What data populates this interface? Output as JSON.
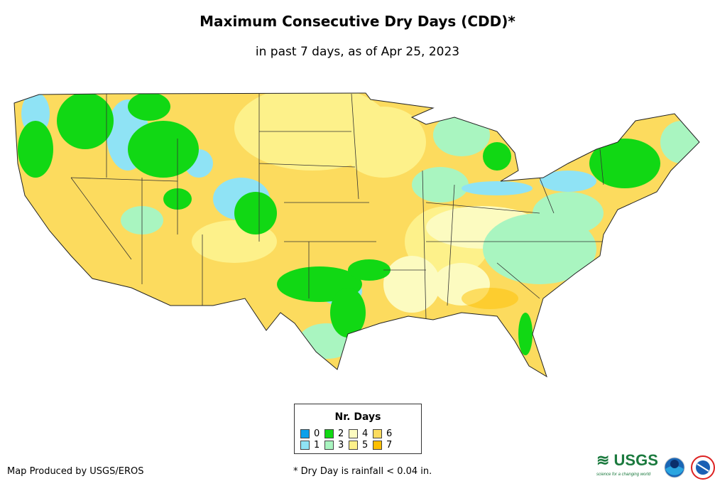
{
  "title": "Maximum Consecutive Dry Days (CDD)*",
  "subtitle": "in past 7 days, as of Apr 25, 2023",
  "legend": {
    "title": "Nr. Days",
    "items": [
      {
        "label": "0",
        "color": "#0aa0ea"
      },
      {
        "label": "1",
        "color": "#8fe3f5"
      },
      {
        "label": "2",
        "color": "#11d814"
      },
      {
        "label": "3",
        "color": "#a9f5c0"
      },
      {
        "label": "4",
        "color": "#fcfbc0"
      },
      {
        "label": "5",
        "color": "#fdf18a"
      },
      {
        "label": "6",
        "color": "#fcdb5e"
      },
      {
        "label": "7",
        "color": "#fdbf00"
      }
    ]
  },
  "credit": "Map Produced by USGS/EROS",
  "footnote": "* Dry Day is rainfall < 0.04 in.",
  "logos": {
    "usgs": "USGS",
    "usgs_tagline": "science for a changing world",
    "noaa": "NOAA",
    "nws": "National Weather Service"
  }
}
